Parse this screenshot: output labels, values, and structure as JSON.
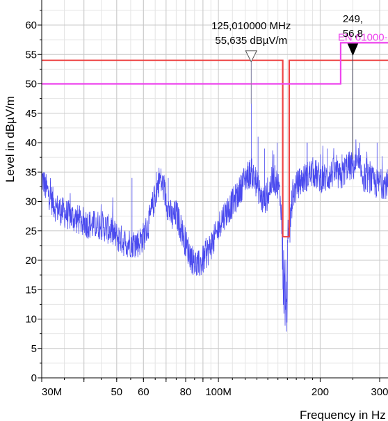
{
  "chart_data": {
    "type": "line",
    "xlabel": "Frequency in Hz",
    "ylabel": "Level in dBµV/m",
    "x_scale": "log",
    "xlim": [
      30,
      330
    ],
    "ylim": [
      0,
      64
    ],
    "grid": true,
    "y_ticks": [
      0,
      5,
      10,
      15,
      20,
      25,
      30,
      35,
      40,
      45,
      50,
      55,
      60
    ],
    "x_tick_labels": [
      {
        "value": 30,
        "label": "30M"
      },
      {
        "value": 50,
        "label": "50"
      },
      {
        "value": 60,
        "label": "60"
      },
      {
        "value": 80,
        "label": "80"
      },
      {
        "value": 100,
        "label": "100M"
      },
      {
        "value": 200,
        "label": "200"
      },
      {
        "value": 300,
        "label": "300"
      }
    ],
    "x_unlabeled_ticks": [
      40,
      70,
      90,
      400
    ],
    "limit_lines": [
      {
        "color": "#ee4444",
        "points": [
          [
            30,
            54
          ],
          [
            155,
            54
          ],
          [
            155,
            24
          ],
          [
            162,
            24
          ],
          [
            162,
            54
          ],
          [
            330,
            54
          ]
        ]
      },
      {
        "name": "EN 61000-",
        "color": "#ee44ee",
        "points": [
          [
            30,
            50
          ],
          [
            230,
            50
          ],
          [
            230,
            57
          ],
          [
            330,
            57
          ]
        ]
      }
    ],
    "markers": [
      {
        "x": 125.01,
        "y": 55.635,
        "line1": "125,010000 MHz",
        "line2": "55,635 dBµV/m",
        "style": "open"
      },
      {
        "x": 249.9,
        "y": 56.8,
        "line1": "249,",
        "line2": "56,8",
        "style": "filled"
      }
    ],
    "series": [
      {
        "color": "#4a4aee",
        "anchors": [
          [
            30,
            34
          ],
          [
            31,
            32
          ],
          [
            33,
            29
          ],
          [
            35,
            28
          ],
          [
            38,
            27
          ],
          [
            40,
            26.5
          ],
          [
            42,
            26
          ],
          [
            45,
            26
          ],
          [
            48,
            25
          ],
          [
            50,
            24
          ],
          [
            53,
            23
          ],
          [
            55,
            23
          ],
          [
            58,
            23
          ],
          [
            60,
            24
          ],
          [
            62,
            26
          ],
          [
            65,
            31
          ],
          [
            67,
            34
          ],
          [
            69,
            32
          ],
          [
            71,
            29
          ],
          [
            73,
            27
          ],
          [
            75,
            28
          ],
          [
            78,
            25
          ],
          [
            81,
            22
          ],
          [
            84,
            20
          ],
          [
            87,
            19
          ],
          [
            90,
            20
          ],
          [
            94,
            22
          ],
          [
            98,
            24
          ],
          [
            102,
            27
          ],
          [
            108,
            29
          ],
          [
            114,
            31
          ],
          [
            120,
            34
          ],
          [
            125,
            35
          ],
          [
            130,
            33
          ],
          [
            135,
            30
          ],
          [
            140,
            31
          ],
          [
            145,
            34
          ],
          [
            150,
            33
          ],
          [
            153,
            30
          ],
          [
            155,
            20
          ],
          [
            157,
            14
          ],
          [
            159,
            13
          ],
          [
            161,
            20
          ],
          [
            163,
            27
          ],
          [
            166,
            31
          ],
          [
            172,
            33
          ],
          [
            180,
            34
          ],
          [
            190,
            35
          ],
          [
            200,
            34
          ],
          [
            210,
            34
          ],
          [
            220,
            35
          ],
          [
            230,
            34
          ],
          [
            240,
            36
          ],
          [
            250,
            36
          ],
          [
            260,
            36
          ],
          [
            270,
            34
          ],
          [
            280,
            34
          ],
          [
            290,
            33
          ],
          [
            300,
            33
          ],
          [
            315,
            33
          ],
          [
            330,
            33
          ]
        ],
        "spikes": [
          [
            125.01,
            55.6
          ],
          [
            249.9,
            56.8
          ],
          [
            131,
            41
          ],
          [
            137,
            39
          ],
          [
            146,
            38
          ],
          [
            149,
            40
          ],
          [
            183,
            40
          ],
          [
            200,
            38
          ],
          [
            210,
            39
          ],
          [
            232,
            38
          ],
          [
            262,
            40
          ],
          [
            295,
            40
          ],
          [
            55.5,
            34
          ],
          [
            65.5,
            35
          ],
          [
            71,
            34
          ]
        ]
      }
    ]
  }
}
